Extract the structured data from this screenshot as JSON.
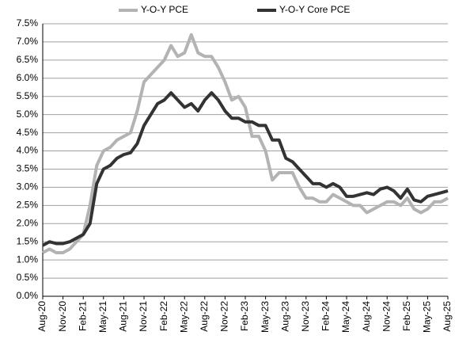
{
  "chart_data": {
    "type": "line",
    "categories": [
      "Aug-20",
      null,
      null,
      "Nov-20",
      null,
      null,
      "Feb-21",
      null,
      null,
      "May-21",
      null,
      null,
      "Aug-21",
      null,
      null,
      "Nov-21",
      null,
      null,
      "Feb-22",
      null,
      null,
      "May-22",
      null,
      null,
      "Aug-22",
      null,
      null,
      "Nov-22",
      null,
      null,
      "Feb-23",
      null,
      null,
      "May-23",
      null,
      null,
      "Aug-23",
      null,
      null,
      "Nov-23",
      null,
      null,
      "Feb-24",
      null,
      null,
      "May-24",
      null,
      null,
      "Aug-24",
      null,
      null,
      "Nov-24",
      null,
      null,
      "Feb-25",
      null,
      null,
      "May-25",
      null,
      null,
      "Aug-25"
    ],
    "series": [
      {
        "name": "Y-O-Y PCE",
        "color": "#b3b3b3",
        "values": [
          1.2,
          1.3,
          1.2,
          1.2,
          1.3,
          1.5,
          1.7,
          2.5,
          3.6,
          4.0,
          4.1,
          4.3,
          4.4,
          4.5,
          5.1,
          5.9,
          6.1,
          6.3,
          6.5,
          6.9,
          6.6,
          6.7,
          7.2,
          6.7,
          6.6,
          6.6,
          6.3,
          5.9,
          5.4,
          5.5,
          5.2,
          4.4,
          4.4,
          4.0,
          3.2,
          3.4,
          3.4,
          3.4,
          3.0,
          2.7,
          2.7,
          2.6,
          2.6,
          2.8,
          2.7,
          2.6,
          2.5,
          2.5,
          2.3,
          2.4,
          2.5,
          2.6,
          2.6,
          2.5,
          2.7,
          2.4,
          2.3,
          2.4,
          2.6,
          2.6,
          2.7
        ]
      },
      {
        "name": "Y-O-Y Core PCE",
        "color": "#333333",
        "values": [
          1.4,
          1.5,
          1.45,
          1.45,
          1.5,
          1.6,
          1.7,
          2.0,
          3.1,
          3.5,
          3.6,
          3.8,
          3.9,
          3.95,
          4.2,
          4.7,
          5.0,
          5.3,
          5.4,
          5.6,
          5.4,
          5.2,
          5.3,
          5.1,
          5.4,
          5.6,
          5.4,
          5.1,
          4.9,
          4.9,
          4.8,
          4.8,
          4.7,
          4.7,
          4.3,
          4.3,
          3.8,
          3.7,
          3.5,
          3.3,
          3.1,
          3.1,
          3.0,
          3.1,
          3.0,
          2.75,
          2.75,
          2.8,
          2.85,
          2.8,
          2.95,
          3.0,
          2.9,
          2.7,
          2.95,
          2.65,
          2.6,
          2.75,
          2.8,
          2.85,
          2.9
        ]
      }
    ],
    "ylim": [
      0,
      7.5
    ],
    "yticks": [
      {
        "value": 0,
        "label": "0.0%"
      },
      {
        "value": 0.5,
        "label": "0.5%"
      },
      {
        "value": 1,
        "label": "1.0%"
      },
      {
        "value": 1.5,
        "label": "1.5%"
      },
      {
        "value": 2,
        "label": "2.0%"
      },
      {
        "value": 2.5,
        "label": "2.5%"
      },
      {
        "value": 3,
        "label": "3.0%"
      },
      {
        "value": 3.5,
        "label": "3.5%"
      },
      {
        "value": 4,
        "label": "4.0%"
      },
      {
        "value": 4.5,
        "label": "4.5%"
      },
      {
        "value": 5,
        "label": "5.0%"
      },
      {
        "value": 5.5,
        "label": "5.5%"
      },
      {
        "value": 6,
        "label": "6.0%"
      },
      {
        "value": 6.5,
        "label": "6.5%"
      },
      {
        "value": 7,
        "label": "7.0%"
      },
      {
        "value": 7.5,
        "label": "7.5%"
      }
    ],
    "grid": true,
    "legend": "top"
  }
}
